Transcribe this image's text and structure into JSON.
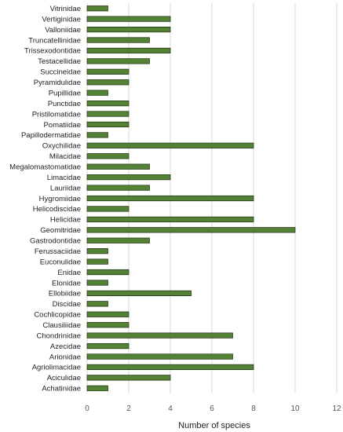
{
  "chart_data": {
    "type": "bar",
    "orientation": "horizontal",
    "xlabel": "Number of species",
    "xlim": [
      0,
      12
    ],
    "xticks": [
      0,
      2,
      4,
      6,
      8,
      10,
      12
    ],
    "grid": "vertical",
    "categories": [
      "Vitrinidae",
      "Vertiginidae",
      "Valloniidae",
      "Truncatellinidae",
      "Trissexodontidae",
      "Testacellidae",
      "Succineidae",
      "Pyramidulidae",
      "Pupillidae",
      "Punctidae",
      "Pristilomatidae",
      "Pomatiidae",
      "Papillodermatidae",
      "Oxychilidae",
      "Milacidae",
      "Megalomastomatidae",
      "Limacidae",
      "Lauriidae",
      "Hygromiidae",
      "Helicodiscidae",
      "Helicidae",
      "Geomitridae",
      "Gastrodontidae",
      "Ferussaciidae",
      "Euconulidae",
      "Enidae",
      "Elonidae",
      "Ellobiidae",
      "Discidae",
      "Cochlicopidae",
      "Clausiliidae",
      "Chondrinidae",
      "Azecidae",
      "Arionidae",
      "Agriolimacidae",
      "Aciculidae",
      "Achatinidae"
    ],
    "values": [
      1,
      4,
      4,
      3,
      4,
      3,
      2,
      2,
      1,
      2,
      2,
      2,
      1,
      8,
      2,
      3,
      4,
      3,
      8,
      2,
      8,
      10,
      3,
      1,
      1,
      2,
      1,
      5,
      1,
      2,
      2,
      7,
      2,
      7,
      8,
      4,
      1
    ],
    "colors": {
      "bar_fill": "#548235",
      "bar_stroke": "#1e2e10",
      "grid": "#d9d9d9"
    }
  }
}
